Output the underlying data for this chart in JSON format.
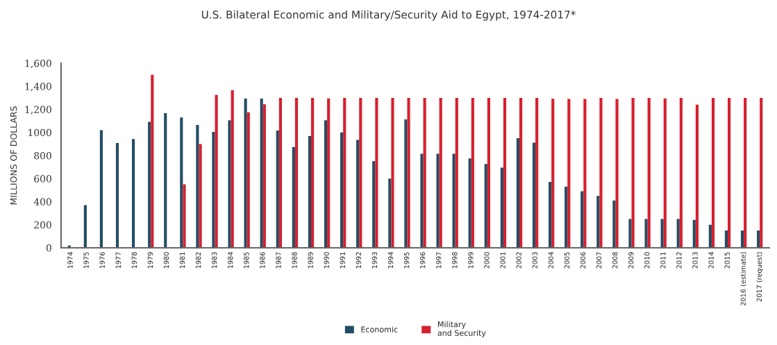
{
  "chart_data": {
    "type": "bar",
    "title": "U.S. Bilateral Economic and Military/Security Aid to Egypt, 1974-2017*",
    "ylabel": "MILLIONS OF DOLLARS",
    "categories": [
      "1974",
      "1975",
      "1976",
      "1977",
      "1978",
      "1979",
      "1980",
      "1981",
      "1982",
      "1983",
      "1984",
      "1985",
      "1986",
      "1987",
      "1988",
      "1989",
      "1990",
      "1991",
      "1992",
      "1993",
      "1994",
      "1995",
      "1996",
      "1997",
      "1998",
      "1999",
      "2000",
      "2001",
      "2002",
      "2003",
      "2004",
      "2005",
      "2006",
      "2007",
      "2008",
      "2009",
      "2010",
      "2011",
      "2012",
      "2013",
      "2014",
      "2015",
      "2016 (estimate)",
      "2017 (request)"
    ],
    "series": [
      {
        "name": "Economic",
        "color": "#234e63",
        "values": [
          20,
          370,
          1020,
          908,
          943,
          1091,
          1167,
          1130,
          1065,
          1005,
          1105,
          1293,
          1293,
          1016,
          873,
          968,
          1105,
          1000,
          935,
          751,
          600,
          1113,
          815,
          815,
          815,
          775,
          727,
          695,
          951,
          911,
          571,
          530,
          490,
          450,
          410,
          250,
          250,
          250,
          250,
          242,
          200,
          150,
          150,
          150
        ]
      },
      {
        "name": "Military\nand Security",
        "color": "#d7202f",
        "values": [
          0,
          0,
          0,
          0,
          0,
          1500,
          0,
          550,
          900,
          1325,
          1366,
          1175,
          1244,
          1300,
          1300,
          1300,
          1294,
          1300,
          1300,
          1300,
          1300,
          1300,
          1300,
          1300,
          1300,
          1300,
          1300,
          1300,
          1300,
          1300,
          1292,
          1290,
          1290,
          1300,
          1290,
          1300,
          1300,
          1295,
          1300,
          1240,
          1300,
          1300,
          1300,
          1300
        ]
      }
    ],
    "ylim": [
      0,
      1600
    ],
    "yticks": [
      0,
      200,
      400,
      600,
      800,
      {
        "value": 1000,
        "label": "1000"
      },
      {
        "value": 1200,
        "label": "1,200"
      },
      {
        "value": 1400,
        "label": "1,400"
      },
      {
        "value": 1600,
        "label": "1,600"
      }
    ],
    "grid": false,
    "legend": "bottom"
  }
}
